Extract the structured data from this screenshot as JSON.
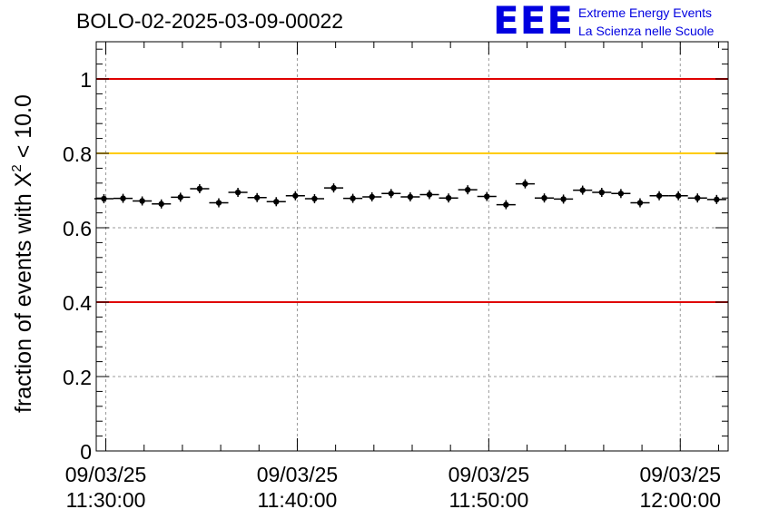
{
  "chart_data": {
    "type": "scatter",
    "title": "BOLO-02-2025-03-09-00022",
    "ylabel_main": "fraction of events with ",
    "ylabel_symbol": "X",
    "ylabel_superscript": "2",
    "ylabel_tail": " < 10.0",
    "ylim": [
      0,
      1.1
    ],
    "yticks": [
      0,
      0.2,
      0.4,
      0.6,
      0.8,
      1
    ],
    "ytick_labels": [
      "0",
      "0.2",
      "0.4",
      "0.6",
      "0.8",
      "1"
    ],
    "xlim_minutes": [
      11.5,
      44.5
    ],
    "xticks": [
      {
        "minute": 12,
        "date": "09/03/25",
        "time": "11:30:00"
      },
      {
        "minute": 22,
        "date": "09/03/25",
        "time": "11:40:00"
      },
      {
        "minute": 32,
        "date": "09/03/25",
        "time": "11:50:00"
      },
      {
        "minute": 42,
        "date": "09/03/25",
        "time": "12:00:00"
      }
    ],
    "reference_lines": [
      {
        "y": 1.0,
        "color": "#e00000"
      },
      {
        "y": 0.8,
        "color": "#ffcc00"
      },
      {
        "y": 0.4,
        "color": "#e00000"
      }
    ],
    "series": [
      {
        "name": "fraction",
        "x_bin_width_minutes": 1,
        "x": [
          11.9,
          12.9,
          13.9,
          14.9,
          15.9,
          16.9,
          17.9,
          18.9,
          19.9,
          20.9,
          21.9,
          22.9,
          23.9,
          24.9,
          25.9,
          26.9,
          27.9,
          28.9,
          29.9,
          30.9,
          31.9,
          32.9,
          33.9,
          34.9,
          35.9,
          36.9,
          37.9,
          38.9,
          39.9,
          40.9,
          41.9,
          42.9,
          43.9
        ],
        "y": [
          0.678,
          0.679,
          0.672,
          0.664,
          0.682,
          0.705,
          0.667,
          0.695,
          0.681,
          0.67,
          0.686,
          0.678,
          0.707,
          0.679,
          0.683,
          0.692,
          0.683,
          0.689,
          0.68,
          0.702,
          0.684,
          0.662,
          0.718,
          0.68,
          0.677,
          0.701,
          0.695,
          0.692,
          0.667,
          0.686,
          0.686,
          0.68,
          0.676
        ]
      }
    ]
  },
  "logo": {
    "mark": "EEE",
    "line1": "Extreme Energy Events",
    "line2": "La Scienza nelle Scuole"
  }
}
